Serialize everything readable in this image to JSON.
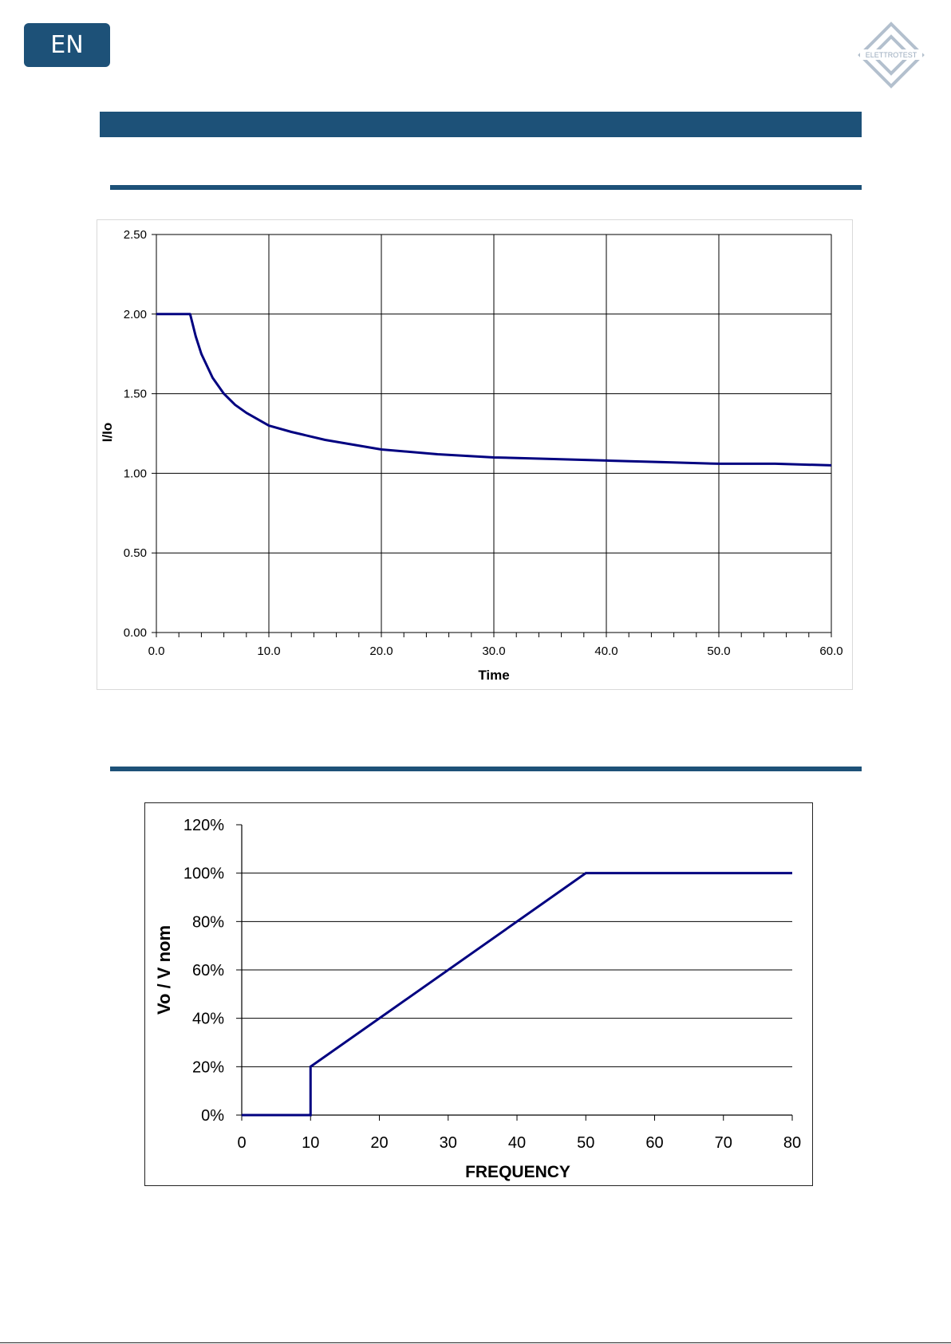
{
  "header": {
    "language": "EN",
    "logo_text": "ELETTROTEST"
  },
  "colors": {
    "brand_blue": "#1d5178",
    "series": "#000080",
    "grid": "#000000"
  },
  "chart_data": [
    {
      "type": "line",
      "xlabel": "Time",
      "ylabel": "I/Io",
      "xlim": [
        0,
        60
      ],
      "ylim": [
        0,
        2.5
      ],
      "x_ticks": [
        "0.0",
        "10.0",
        "20.0",
        "30.0",
        "40.0",
        "50.0",
        "60.0"
      ],
      "y_ticks": [
        "0.00",
        "0.50",
        "1.00",
        "1.50",
        "2.00",
        "2.50"
      ],
      "grid": true,
      "series": [
        {
          "x": [
            0,
            3,
            3.5,
            4,
            5,
            6,
            7,
            8,
            10,
            12,
            15,
            20,
            25,
            30,
            35,
            40,
            45,
            50,
            55,
            60
          ],
          "y": [
            2.0,
            2.0,
            1.86,
            1.75,
            1.6,
            1.5,
            1.43,
            1.38,
            1.3,
            1.26,
            1.21,
            1.15,
            1.12,
            1.1,
            1.09,
            1.08,
            1.07,
            1.06,
            1.06,
            1.05
          ]
        }
      ]
    },
    {
      "type": "line",
      "xlabel": "FREQUENCY",
      "ylabel": "Vo / V nom",
      "xlim": [
        0,
        80
      ],
      "ylim": [
        0,
        120
      ],
      "x_ticks": [
        "0",
        "10",
        "20",
        "30",
        "40",
        "50",
        "60",
        "70",
        "80"
      ],
      "y_ticks": [
        "0%",
        "20%",
        "40%",
        "60%",
        "80%",
        "100%",
        "120%"
      ],
      "grid": true,
      "series": [
        {
          "x": [
            0,
            10,
            10,
            50,
            80
          ],
          "y": [
            0,
            0,
            20,
            100,
            100
          ]
        }
      ]
    }
  ]
}
